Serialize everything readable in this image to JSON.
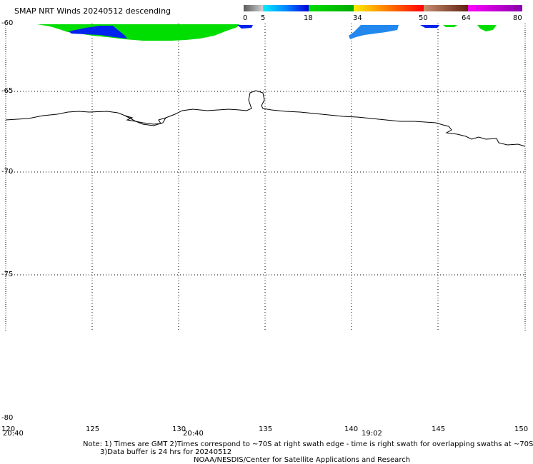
{
  "title": "SMAP NRT Winds  20240512 descending",
  "colorbar": {
    "labels": [
      "0",
      "5",
      "18",
      "34",
      "50",
      "64",
      "80"
    ],
    "bands": [
      {
        "from": 0,
        "to": 5,
        "color": "#5a5a5a",
        "color2": "#d0d0d0"
      },
      {
        "from": 5,
        "to": 18,
        "color": "#00ccff",
        "color2": "#0000dd"
      },
      {
        "from": 18,
        "to": 34,
        "color": "#00dd00",
        "color2": "#00aa00"
      },
      {
        "from": 34,
        "to": 50,
        "color": "#ffdd00",
        "color2": "#ff0000"
      },
      {
        "from": 50,
        "to": 64,
        "color": "#c08060",
        "color2": "#602010"
      },
      {
        "from": 64,
        "to": 80,
        "color": "#ff00ff",
        "color2": "#8800aa"
      }
    ]
  },
  "map": {
    "lat_labels": [
      "-60",
      "-65",
      "-70",
      "-75",
      "-80"
    ],
    "lon_labels": [
      "120",
      "125",
      "130",
      "135",
      "140",
      "145",
      "150"
    ],
    "time_labels": [
      "20:40",
      "20:40",
      "19:02"
    ]
  },
  "notes": {
    "line1": "Note: 1) Times are GMT 2)Times correspond to ~70S at right swath edge - time is right swath for overlapping swaths at ~70S",
    "line2": "3)Data buffer is 24 hrs for 20240512",
    "line3": "NOAA/NESDIS/Center for Satellite Applications and Research"
  },
  "colors": {
    "wind_green": "#00dd00",
    "wind_blue": "#0033ee",
    "wind_lightblue": "#2288ee",
    "coast": "#000000"
  }
}
